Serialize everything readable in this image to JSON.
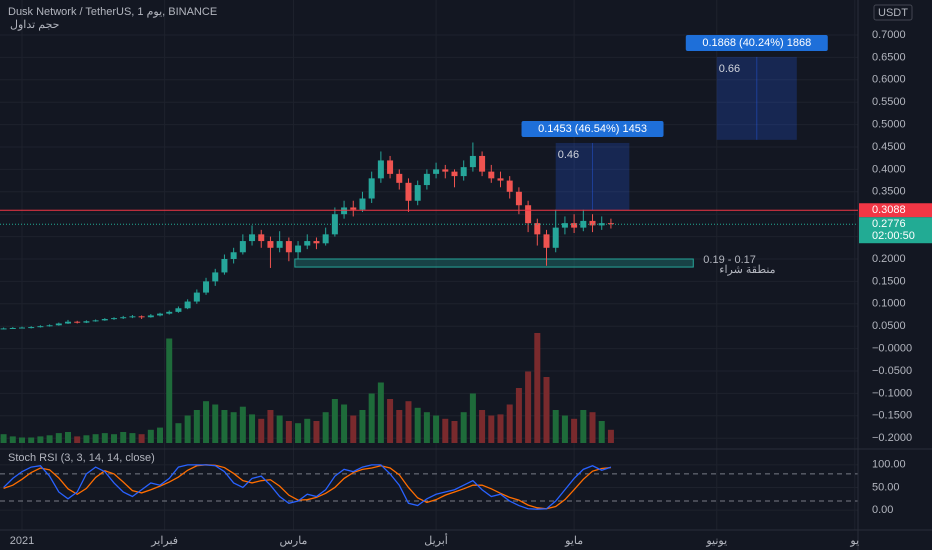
{
  "chart_data": {
    "type": "candlestick",
    "title": "Dusk Network / TetherUS, 1 يوم, BINANCE",
    "subtitle": "حجم تداول",
    "currency": "USDT",
    "colors": {
      "up": "#26a69a",
      "down": "#ef5350"
    },
    "xlim": [
      -4.78,
      181.7
    ],
    "xticks": [
      {
        "value": 0,
        "label": "2021"
      },
      {
        "value": 31,
        "label": "فبراير"
      },
      {
        "value": 59,
        "label": "مارس"
      },
      {
        "value": 90,
        "label": "أبريل"
      },
      {
        "value": 120,
        "label": "مايو"
      },
      {
        "value": 151,
        "label": "يونيو"
      },
      {
        "value": 181,
        "label": "يو"
      }
    ],
    "ylim": [
      -0.2219,
      0.7781
    ],
    "yticks": [
      {
        "value": 0.7,
        "label": "0.7000"
      },
      {
        "value": 0.65,
        "label": "0.6500"
      },
      {
        "value": 0.6,
        "label": "0.6000"
      },
      {
        "value": 0.55,
        "label": "0.5500"
      },
      {
        "value": 0.5,
        "label": "0.5000"
      },
      {
        "value": 0.45,
        "label": "0.4500"
      },
      {
        "value": 0.4,
        "label": "0.4000"
      },
      {
        "value": 0.35,
        "label": "0.3500"
      },
      {
        "value": 0.3,
        "label": "0.3000"
      },
      {
        "value": 0.25,
        "label": "0.2500"
      },
      {
        "value": 0.2,
        "label": "0.2000"
      },
      {
        "value": 0.15,
        "label": "0.1500"
      },
      {
        "value": 0.1,
        "label": "0.1000"
      },
      {
        "value": 0.05,
        "label": "0.0500"
      },
      {
        "value": 0,
        "label": "−0.0000"
      },
      {
        "value": -0.05,
        "label": "−0.0500"
      },
      {
        "value": -0.1,
        "label": "−0.1000"
      },
      {
        "value": -0.15,
        "label": "−0.1500"
      },
      {
        "value": -0.2,
        "label": "−0.2000"
      }
    ],
    "x": [
      -4,
      -2,
      0,
      2,
      4,
      6,
      8,
      10,
      12,
      14,
      16,
      18,
      20,
      22,
      24,
      26,
      28,
      30,
      32,
      34,
      36,
      38,
      40,
      42,
      44,
      46,
      48,
      50,
      52,
      54,
      56,
      58,
      60,
      62,
      64,
      66,
      68,
      70,
      72,
      74,
      76,
      78,
      80,
      82,
      84,
      86,
      88,
      90,
      92,
      94,
      96,
      98,
      100,
      102,
      104,
      106,
      108,
      110,
      112,
      114,
      116,
      118,
      120,
      122,
      124,
      126,
      128
    ],
    "ohlc": [
      [
        0.044,
        0.047,
        0.043,
        0.045
      ],
      [
        0.045,
        0.048,
        0.044,
        0.046
      ],
      [
        0.046,
        0.049,
        0.045,
        0.047
      ],
      [
        0.047,
        0.05,
        0.045,
        0.048
      ],
      [
        0.048,
        0.052,
        0.047,
        0.05
      ],
      [
        0.05,
        0.054,
        0.049,
        0.052
      ],
      [
        0.052,
        0.058,
        0.051,
        0.056
      ],
      [
        0.056,
        0.064,
        0.055,
        0.06
      ],
      [
        0.06,
        0.062,
        0.056,
        0.058
      ],
      [
        0.058,
        0.063,
        0.057,
        0.061
      ],
      [
        0.061,
        0.065,
        0.06,
        0.063
      ],
      [
        0.063,
        0.068,
        0.062,
        0.066
      ],
      [
        0.066,
        0.07,
        0.064,
        0.068
      ],
      [
        0.068,
        0.073,
        0.066,
        0.07
      ],
      [
        0.07,
        0.075,
        0.068,
        0.072
      ],
      [
        0.072,
        0.074,
        0.066,
        0.07
      ],
      [
        0.07,
        0.077,
        0.069,
        0.074
      ],
      [
        0.074,
        0.08,
        0.072,
        0.078
      ],
      [
        0.078,
        0.085,
        0.076,
        0.082
      ],
      [
        0.082,
        0.094,
        0.08,
        0.09
      ],
      [
        0.09,
        0.11,
        0.088,
        0.105
      ],
      [
        0.105,
        0.132,
        0.1,
        0.125
      ],
      [
        0.125,
        0.158,
        0.12,
        0.15
      ],
      [
        0.15,
        0.178,
        0.14,
        0.17
      ],
      [
        0.17,
        0.21,
        0.165,
        0.2
      ],
      [
        0.2,
        0.225,
        0.19,
        0.215
      ],
      [
        0.215,
        0.255,
        0.21,
        0.24
      ],
      [
        0.24,
        0.275,
        0.23,
        0.255
      ],
      [
        0.255,
        0.265,
        0.225,
        0.24
      ],
      [
        0.24,
        0.25,
        0.18,
        0.225
      ],
      [
        0.225,
        0.262,
        0.215,
        0.24
      ],
      [
        0.24,
        0.248,
        0.195,
        0.215
      ],
      [
        0.215,
        0.24,
        0.2,
        0.23
      ],
      [
        0.23,
        0.255,
        0.222,
        0.24
      ],
      [
        0.24,
        0.248,
        0.222,
        0.235
      ],
      [
        0.235,
        0.27,
        0.23,
        0.255
      ],
      [
        0.255,
        0.315,
        0.25,
        0.3
      ],
      [
        0.3,
        0.33,
        0.29,
        0.315
      ],
      [
        0.315,
        0.33,
        0.295,
        0.31
      ],
      [
        0.31,
        0.35,
        0.305,
        0.335
      ],
      [
        0.335,
        0.395,
        0.325,
        0.38
      ],
      [
        0.38,
        0.44,
        0.37,
        0.42
      ],
      [
        0.42,
        0.43,
        0.38,
        0.39
      ],
      [
        0.39,
        0.4,
        0.355,
        0.37
      ],
      [
        0.37,
        0.38,
        0.305,
        0.33
      ],
      [
        0.33,
        0.375,
        0.32,
        0.365
      ],
      [
        0.365,
        0.4,
        0.355,
        0.39
      ],
      [
        0.39,
        0.415,
        0.38,
        0.4
      ],
      [
        0.4,
        0.41,
        0.38,
        0.395
      ],
      [
        0.395,
        0.4,
        0.36,
        0.385
      ],
      [
        0.385,
        0.42,
        0.375,
        0.405
      ],
      [
        0.405,
        0.46,
        0.395,
        0.43
      ],
      [
        0.43,
        0.44,
        0.385,
        0.395
      ],
      [
        0.395,
        0.41,
        0.37,
        0.38
      ],
      [
        0.38,
        0.395,
        0.36,
        0.375
      ],
      [
        0.375,
        0.385,
        0.335,
        0.35
      ],
      [
        0.35,
        0.36,
        0.3,
        0.32
      ],
      [
        0.32,
        0.33,
        0.26,
        0.28
      ],
      [
        0.28,
        0.29,
        0.23,
        0.255
      ],
      [
        0.255,
        0.265,
        0.185,
        0.225
      ],
      [
        0.225,
        0.31,
        0.215,
        0.27
      ],
      [
        0.27,
        0.295,
        0.255,
        0.28
      ],
      [
        0.28,
        0.3,
        0.258,
        0.27
      ],
      [
        0.27,
        0.31,
        0.262,
        0.285
      ],
      [
        0.285,
        0.3,
        0.26,
        0.275
      ],
      [
        0.275,
        0.295,
        0.265,
        0.28
      ],
      [
        0.28,
        0.29,
        0.268,
        0.2776
      ]
    ],
    "volume": {
      "ylim": [
        0,
        100
      ],
      "colors": {
        "up": "#1e6b3a",
        "down": "#7a2a2d"
      },
      "values": [
        8,
        6,
        5,
        5,
        6,
        7,
        9,
        10,
        6,
        7,
        8,
        9,
        8,
        10,
        9,
        8,
        12,
        14,
        95,
        18,
        25,
        30,
        38,
        35,
        30,
        28,
        33,
        26,
        22,
        30,
        25,
        20,
        18,
        22,
        20,
        28,
        40,
        35,
        25,
        30,
        45,
        55,
        40,
        30,
        38,
        32,
        28,
        25,
        22,
        20,
        28,
        45,
        30,
        25,
        26,
        35,
        50,
        65,
        100,
        60,
        30,
        25,
        22,
        30,
        28,
        20,
        12
      ]
    },
    "price_lines": [
      {
        "value": 0.3088,
        "color": "#f23645"
      }
    ],
    "last_price": {
      "value": 0.2776,
      "countdown": "02:00:50",
      "color": "#22ab94"
    },
    "zone": {
      "x": [
        59.3,
        145.9
      ],
      "top": 0.2,
      "bottom": 0.182,
      "label": "0.19 - 0.17",
      "caption": "منطقة شراء",
      "color": "#26a69a"
    },
    "measures": [
      {
        "x": [
          116,
          132
        ],
        "low": 0.309,
        "high": 0.459,
        "label": "0.1453 (46.54%) 1453",
        "target": 0.46
      },
      {
        "x": [
          151,
          168.4
        ],
        "low": 0.466,
        "high": 0.651,
        "label": "0.1868 (40.24%) 1868",
        "target": 0.66
      }
    ],
    "stoch": {
      "title": "Stoch RSI (3, 3, 14, 14, close)",
      "ylim": [
        -44,
        135
      ],
      "bands": [
        80,
        20
      ],
      "yticks": [
        {
          "value": 100,
          "label": "100.00"
        },
        {
          "value": 50,
          "label": "50.00"
        },
        {
          "value": 0,
          "label": "0.00"
        }
      ],
      "k": {
        "color": "#2962ff",
        "values": [
          50,
          70,
          85,
          95,
          98,
          75,
          40,
          25,
          40,
          80,
          95,
          85,
          60,
          40,
          30,
          45,
          60,
          55,
          70,
          95,
          100,
          100,
          100,
          98,
          85,
          60,
          50,
          70,
          75,
          55,
          30,
          15,
          20,
          35,
          30,
          45,
          75,
          90,
          85,
          95,
          100,
          100,
          80,
          55,
          15,
          10,
          25,
          35,
          40,
          45,
          55,
          65,
          45,
          30,
          35,
          20,
          10,
          3,
          2,
          3,
          20,
          45,
          70,
          90,
          98,
          88,
          95
        ]
      },
      "d": {
        "color": "#ff6d00",
        "values": [
          48,
          55,
          68,
          83,
          93,
          89,
          71,
          47,
          35,
          48,
          72,
          87,
          80,
          62,
          43,
          38,
          45,
          53,
          62,
          73,
          88,
          98,
          100,
          99,
          94,
          81,
          65,
          60,
          65,
          67,
          53,
          33,
          22,
          23,
          28,
          37,
          50,
          70,
          83,
          90,
          93,
          98,
          93,
          78,
          50,
          27,
          17,
          23,
          33,
          40,
          47,
          55,
          55,
          47,
          37,
          28,
          22,
          11,
          5,
          3,
          8,
          23,
          45,
          68,
          86,
          92,
          94
        ]
      }
    }
  }
}
